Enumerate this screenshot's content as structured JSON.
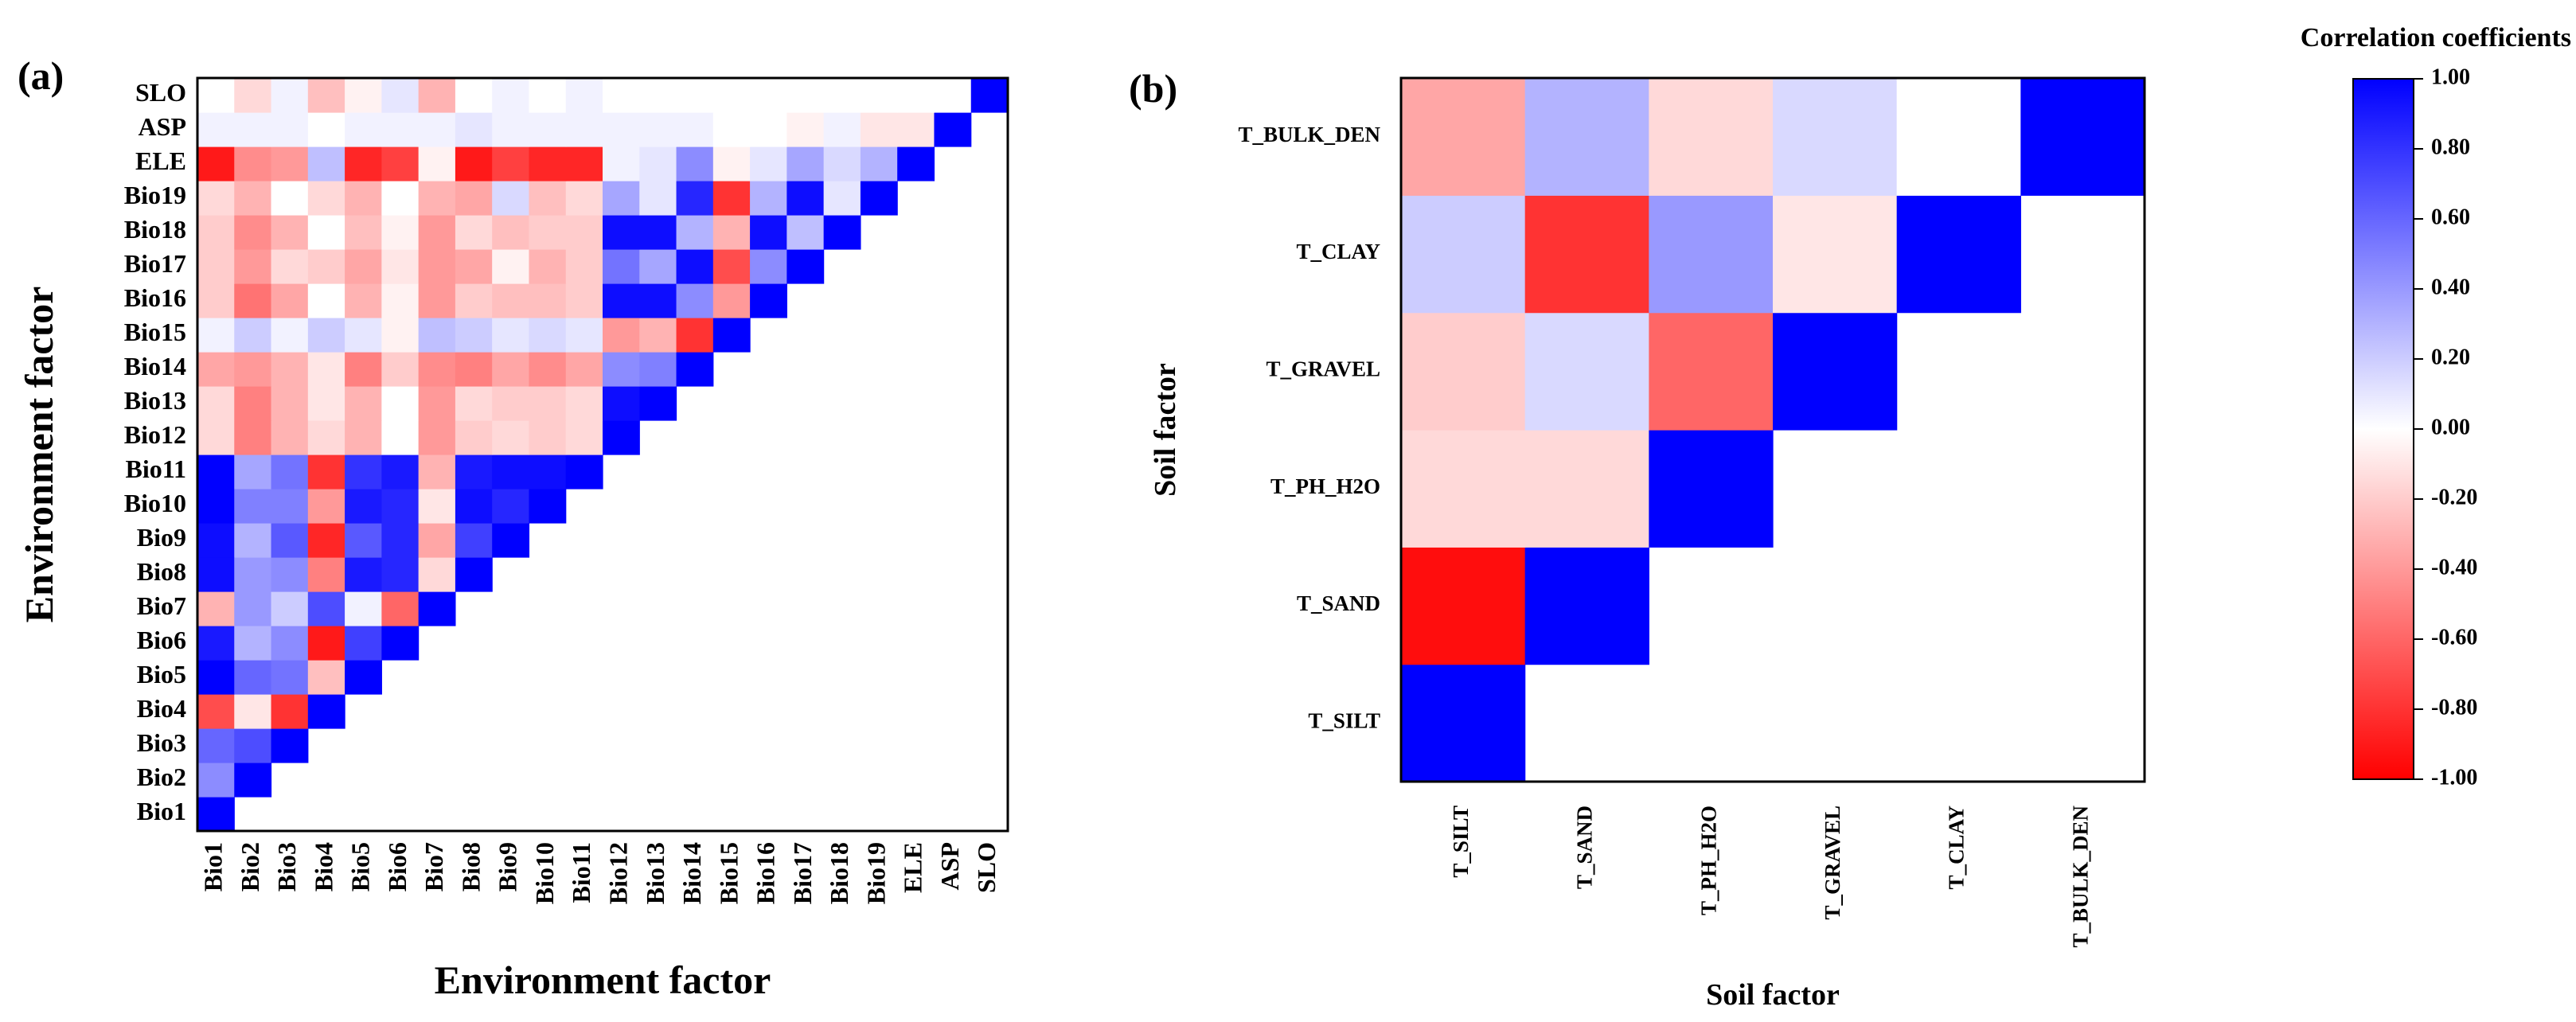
{
  "panel_a": {
    "label": "(a)",
    "chart_data": {
      "type": "heatmap",
      "variables": [
        "Bio1",
        "Bio2",
        "Bio3",
        "Bio4",
        "Bio5",
        "Bio6",
        "Bio7",
        "Bio8",
        "Bio9",
        "Bio10",
        "Bio11",
        "Bio12",
        "Bio13",
        "Bio14",
        "Bio15",
        "Bio16",
        "Bio17",
        "Bio18",
        "Bio19",
        "ELE",
        "ASP",
        "SLO"
      ],
      "xlabel": "Environment factor",
      "ylabel": "Environment factor",
      "vlim": [
        -1,
        1
      ],
      "matrix": [
        [
          1.0
        ],
        [
          0.45,
          1.0
        ],
        [
          0.6,
          0.7,
          1.0
        ],
        [
          -0.7,
          -0.1,
          -0.8,
          1.0
        ],
        [
          1.0,
          0.6,
          0.55,
          -0.25,
          1.0
        ],
        [
          0.9,
          0.3,
          0.45,
          -0.9,
          0.75,
          1.0
        ],
        [
          -0.3,
          0.4,
          0.2,
          0.7,
          0.05,
          -0.6,
          1.0
        ],
        [
          0.95,
          0.4,
          0.45,
          -0.5,
          0.9,
          0.85,
          -0.15,
          1.0
        ],
        [
          0.95,
          0.3,
          0.65,
          -0.85,
          0.65,
          0.85,
          -0.35,
          0.75,
          1.0
        ],
        [
          1.0,
          0.5,
          0.5,
          -0.4,
          0.9,
          0.85,
          -0.1,
          0.95,
          0.85,
          1.0
        ],
        [
          1.0,
          0.35,
          0.55,
          -0.8,
          0.8,
          0.9,
          -0.3,
          0.9,
          0.95,
          0.95,
          1.0
        ],
        [
          -0.15,
          -0.5,
          -0.3,
          -0.15,
          -0.3,
          0.0,
          -0.4,
          -0.2,
          -0.15,
          -0.2,
          -0.15,
          1.0
        ],
        [
          -0.15,
          -0.5,
          -0.3,
          -0.1,
          -0.3,
          0.0,
          -0.4,
          -0.15,
          -0.2,
          -0.2,
          -0.15,
          0.95,
          1.0
        ],
        [
          -0.35,
          -0.4,
          -0.3,
          -0.1,
          -0.5,
          -0.2,
          -0.45,
          -0.5,
          -0.35,
          -0.45,
          -0.35,
          0.45,
          0.5,
          1.0
        ],
        [
          0.05,
          0.2,
          0.05,
          0.2,
          0.1,
          -0.05,
          0.25,
          0.2,
          0.1,
          0.15,
          0.1,
          -0.4,
          -0.3,
          -0.8,
          1.0
        ],
        [
          -0.2,
          -0.55,
          -0.35,
          0.0,
          -0.3,
          -0.05,
          -0.4,
          -0.2,
          -0.25,
          -0.25,
          -0.2,
          0.95,
          0.95,
          0.45,
          -0.4,
          1.0
        ],
        [
          -0.2,
          -0.4,
          -0.15,
          -0.2,
          -0.35,
          -0.1,
          -0.4,
          -0.35,
          -0.05,
          -0.3,
          -0.2,
          0.55,
          0.35,
          0.95,
          -0.7,
          0.45,
          1.0
        ],
        [
          -0.2,
          -0.45,
          -0.3,
          0.0,
          -0.25,
          -0.05,
          -0.4,
          -0.15,
          -0.25,
          -0.2,
          -0.2,
          0.95,
          0.95,
          0.3,
          -0.3,
          0.95,
          0.25,
          1.0
        ],
        [
          -0.15,
          -0.3,
          0.0,
          -0.15,
          -0.3,
          0.0,
          -0.3,
          -0.35,
          0.15,
          -0.25,
          -0.15,
          0.35,
          0.1,
          0.85,
          -0.8,
          0.3,
          0.95,
          0.1,
          1.0
        ],
        [
          -0.9,
          -0.45,
          -0.4,
          0.25,
          -0.85,
          -0.75,
          -0.05,
          -0.9,
          -0.75,
          -0.85,
          -0.85,
          0.05,
          0.1,
          0.45,
          -0.05,
          0.1,
          0.35,
          0.15,
          0.3,
          1.0
        ],
        [
          0.05,
          0.05,
          0.05,
          0.0,
          0.05,
          0.05,
          0.05,
          0.1,
          0.05,
          0.05,
          0.05,
          0.05,
          0.05,
          0.05,
          0.0,
          0.0,
          -0.05,
          0.05,
          -0.1,
          -0.1,
          1.0
        ],
        [
          0.0,
          -0.15,
          0.05,
          -0.25,
          -0.05,
          0.1,
          -0.3,
          0.0,
          0.05,
          0.0,
          0.05,
          0.0,
          0.0,
          0.0,
          0.0,
          0.0,
          0.0,
          0.0,
          0.0,
          0.0,
          0.0,
          1.0
        ]
      ]
    }
  },
  "panel_b": {
    "label": "(b)",
    "chart_data": {
      "type": "heatmap",
      "variables": [
        "T_SILT",
        "T_SAND",
        "T_PH_H2O",
        "T_GRAVEL",
        "T_CLAY",
        "T_BULK_DEN"
      ],
      "xlabel": "Soil factor",
      "ylabel": "Soil factor",
      "vlim": [
        -1,
        1
      ],
      "matrix": [
        [
          1.0
        ],
        [
          -0.95,
          1.0
        ],
        [
          -0.15,
          -0.15,
          1.0
        ],
        [
          -0.2,
          0.15,
          -0.6,
          1.0
        ],
        [
          0.2,
          -0.8,
          0.4,
          -0.1,
          1.0
        ],
        [
          -0.35,
          0.3,
          -0.15,
          0.15,
          0.0,
          1.0
        ]
      ]
    }
  },
  "colorbar": {
    "title": "Correlation coefficients",
    "ticks": [
      "1.00",
      "0.80",
      "0.60",
      "0.40",
      "0.20",
      "0.00",
      "-0.20",
      "-0.40",
      "-0.60",
      "-0.80",
      "-1.00"
    ],
    "colors": {
      "positive": "#0000ff",
      "zero": "#ffffff",
      "negative": "#ff0000"
    }
  }
}
